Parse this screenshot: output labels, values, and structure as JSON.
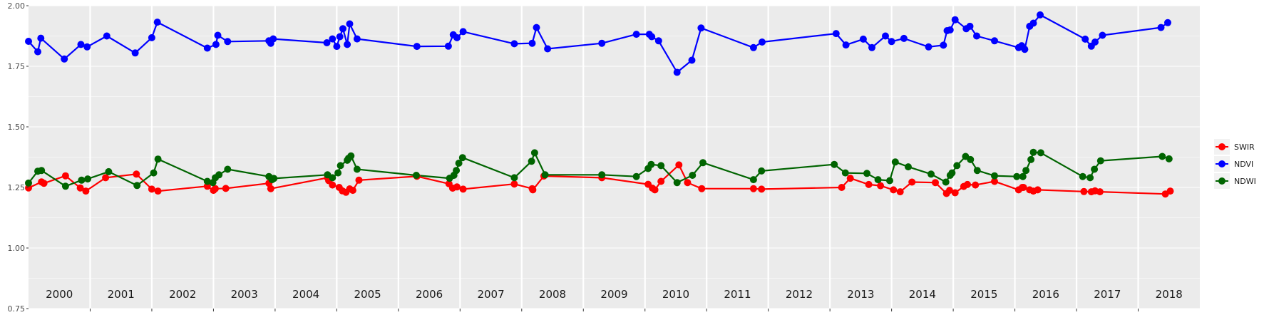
{
  "chart_data": {
    "type": "line",
    "title": "",
    "xlabel": "",
    "ylabel": "",
    "x_axis": {
      "range": [
        2000.0,
        2019.0
      ]
    },
    "ylim": [
      0.75,
      2.0
    ],
    "yticks": [
      0.75,
      1.0,
      1.25,
      1.5,
      1.75,
      2.0
    ],
    "ytick_labels": [
      "0.75",
      "1.00",
      "1.25",
      "1.50",
      "1.75",
      "2.00"
    ],
    "year_labels": [
      "2000",
      "2001",
      "2002",
      "2003",
      "2004",
      "2005",
      "2006",
      "2007",
      "2008",
      "2009",
      "2010",
      "2011",
      "2012",
      "2013",
      "2014",
      "2015",
      "2016",
      "2017",
      "2018"
    ],
    "grid": true,
    "legend_position": "right",
    "series": [
      {
        "name": "SWIR",
        "color": "#ff0000",
        "points": [
          [
            2000.0,
            1.248
          ],
          [
            2000.21,
            1.273
          ],
          [
            2000.25,
            1.267
          ],
          [
            2000.6,
            1.298
          ],
          [
            2000.84,
            1.248
          ],
          [
            2000.93,
            1.235
          ],
          [
            2001.25,
            1.29
          ],
          [
            2001.75,
            1.305
          ],
          [
            2002.0,
            1.243
          ],
          [
            2002.1,
            1.235
          ],
          [
            2002.9,
            1.255
          ],
          [
            2003.0,
            1.238
          ],
          [
            2003.03,
            1.245
          ],
          [
            2003.2,
            1.246
          ],
          [
            2003.9,
            1.267
          ],
          [
            2003.93,
            1.245
          ],
          [
            2004.85,
            1.29
          ],
          [
            2004.87,
            1.278
          ],
          [
            2004.93,
            1.26
          ],
          [
            2005.04,
            1.25
          ],
          [
            2005.09,
            1.236
          ],
          [
            2005.15,
            1.23
          ],
          [
            2005.21,
            1.244
          ],
          [
            2005.26,
            1.238
          ],
          [
            2005.36,
            1.28
          ],
          [
            2006.3,
            1.296
          ],
          [
            2006.82,
            1.265
          ],
          [
            2006.88,
            1.247
          ],
          [
            2006.95,
            1.252
          ],
          [
            2007.05,
            1.243
          ],
          [
            2007.88,
            1.264
          ],
          [
            2008.17,
            1.245
          ],
          [
            2008.18,
            1.24
          ],
          [
            2008.36,
            1.297
          ],
          [
            2009.3,
            1.29
          ],
          [
            2010.05,
            1.263
          ],
          [
            2010.12,
            1.247
          ],
          [
            2010.16,
            1.24
          ],
          [
            2010.26,
            1.275
          ],
          [
            2010.55,
            1.343
          ],
          [
            2010.69,
            1.27
          ],
          [
            2010.92,
            1.245
          ],
          [
            2011.76,
            1.245
          ],
          [
            2011.89,
            1.243
          ],
          [
            2013.19,
            1.25
          ],
          [
            2013.33,
            1.288
          ],
          [
            2013.63,
            1.262
          ],
          [
            2013.82,
            1.257
          ],
          [
            2014.03,
            1.24
          ],
          [
            2014.14,
            1.232
          ],
          [
            2014.33,
            1.272
          ],
          [
            2014.71,
            1.27
          ],
          [
            2014.89,
            1.225
          ],
          [
            2014.94,
            1.238
          ],
          [
            2015.03,
            1.228
          ],
          [
            2015.17,
            1.254
          ],
          [
            2015.23,
            1.262
          ],
          [
            2015.36,
            1.26
          ],
          [
            2015.67,
            1.275
          ],
          [
            2016.06,
            1.24
          ],
          [
            2016.12,
            1.25
          ],
          [
            2016.14,
            1.25
          ],
          [
            2016.24,
            1.24
          ],
          [
            2016.3,
            1.235
          ],
          [
            2016.37,
            1.24
          ],
          [
            2017.12,
            1.233
          ],
          [
            2017.24,
            1.232
          ],
          [
            2017.3,
            1.236
          ],
          [
            2017.38,
            1.232
          ],
          [
            2018.44,
            1.223
          ],
          [
            2018.52,
            1.235
          ]
        ]
      },
      {
        "name": "NDVI",
        "color": "#0000ff",
        "points": [
          [
            2000.0,
            1.853
          ],
          [
            2000.15,
            1.81
          ],
          [
            2000.2,
            1.866
          ],
          [
            2000.58,
            1.78
          ],
          [
            2000.85,
            1.84
          ],
          [
            2000.95,
            1.83
          ],
          [
            2001.27,
            1.875
          ],
          [
            2001.73,
            1.805
          ],
          [
            2002.0,
            1.868
          ],
          [
            2002.09,
            1.932
          ],
          [
            2002.9,
            1.825
          ],
          [
            2003.04,
            1.84
          ],
          [
            2003.07,
            1.878
          ],
          [
            2003.23,
            1.852
          ],
          [
            2003.9,
            1.855
          ],
          [
            2003.93,
            1.845
          ],
          [
            2003.97,
            1.863
          ],
          [
            2004.84,
            1.847
          ],
          [
            2004.93,
            1.863
          ],
          [
            2005.0,
            1.832
          ],
          [
            2005.05,
            1.872
          ],
          [
            2005.1,
            1.905
          ],
          [
            2005.17,
            1.84
          ],
          [
            2005.21,
            1.925
          ],
          [
            2005.33,
            1.863
          ],
          [
            2006.3,
            1.832
          ],
          [
            2006.81,
            1.833
          ],
          [
            2006.89,
            1.88
          ],
          [
            2006.95,
            1.868
          ],
          [
            2007.05,
            1.893
          ],
          [
            2007.88,
            1.843
          ],
          [
            2008.17,
            1.845
          ],
          [
            2008.24,
            1.91
          ],
          [
            2008.42,
            1.822
          ],
          [
            2009.3,
            1.845
          ],
          [
            2009.86,
            1.882
          ],
          [
            2010.07,
            1.882
          ],
          [
            2010.11,
            1.872
          ],
          [
            2010.22,
            1.855
          ],
          [
            2010.52,
            1.725
          ],
          [
            2010.76,
            1.775
          ],
          [
            2010.91,
            1.908
          ],
          [
            2011.76,
            1.827
          ],
          [
            2011.9,
            1.85
          ],
          [
            2013.1,
            1.885
          ],
          [
            2013.26,
            1.838
          ],
          [
            2013.54,
            1.862
          ],
          [
            2013.68,
            1.827
          ],
          [
            2013.9,
            1.875
          ],
          [
            2014.0,
            1.852
          ],
          [
            2014.2,
            1.865
          ],
          [
            2014.6,
            1.83
          ],
          [
            2014.84,
            1.837
          ],
          [
            2014.9,
            1.897
          ],
          [
            2014.95,
            1.9
          ],
          [
            2015.03,
            1.942
          ],
          [
            2015.21,
            1.905
          ],
          [
            2015.27,
            1.915
          ],
          [
            2015.38,
            1.875
          ],
          [
            2015.67,
            1.855
          ],
          [
            2016.06,
            1.827
          ],
          [
            2016.11,
            1.835
          ],
          [
            2016.16,
            1.82
          ],
          [
            2016.24,
            1.915
          ],
          [
            2016.3,
            1.928
          ],
          [
            2016.41,
            1.962
          ],
          [
            2017.14,
            1.862
          ],
          [
            2017.24,
            1.833
          ],
          [
            2017.3,
            1.85
          ],
          [
            2017.42,
            1.878
          ],
          [
            2018.37,
            1.91
          ],
          [
            2018.48,
            1.93
          ]
        ]
      },
      {
        "name": "NDWI",
        "color": "#006400",
        "points": [
          [
            2000.0,
            1.268
          ],
          [
            2000.15,
            1.317
          ],
          [
            2000.21,
            1.32
          ],
          [
            2000.6,
            1.255
          ],
          [
            2000.86,
            1.28
          ],
          [
            2000.96,
            1.285
          ],
          [
            2001.3,
            1.315
          ],
          [
            2001.76,
            1.258
          ],
          [
            2002.03,
            1.31
          ],
          [
            2002.1,
            1.367
          ],
          [
            2002.9,
            1.275
          ],
          [
            2002.99,
            1.27
          ],
          [
            2003.03,
            1.29
          ],
          [
            2003.09,
            1.302
          ],
          [
            2003.23,
            1.325
          ],
          [
            2003.9,
            1.295
          ],
          [
            2003.95,
            1.282
          ],
          [
            2003.98,
            1.287
          ],
          [
            2004.85,
            1.302
          ],
          [
            2004.93,
            1.29
          ],
          [
            2005.02,
            1.31
          ],
          [
            2005.06,
            1.34
          ],
          [
            2005.17,
            1.362
          ],
          [
            2005.19,
            1.37
          ],
          [
            2005.23,
            1.38
          ],
          [
            2005.33,
            1.325
          ],
          [
            2006.29,
            1.3
          ],
          [
            2006.83,
            1.288
          ],
          [
            2006.9,
            1.3
          ],
          [
            2006.94,
            1.32
          ],
          [
            2006.98,
            1.35
          ],
          [
            2007.04,
            1.373
          ],
          [
            2007.88,
            1.29
          ],
          [
            2008.16,
            1.358
          ],
          [
            2008.21,
            1.393
          ],
          [
            2008.38,
            1.302
          ],
          [
            2009.3,
            1.302
          ],
          [
            2009.86,
            1.295
          ],
          [
            2010.05,
            1.328
          ],
          [
            2010.1,
            1.345
          ],
          [
            2010.26,
            1.34
          ],
          [
            2010.52,
            1.27
          ],
          [
            2010.77,
            1.3
          ],
          [
            2010.94,
            1.352
          ],
          [
            2011.76,
            1.282
          ],
          [
            2011.89,
            1.318
          ],
          [
            2013.07,
            1.345
          ],
          [
            2013.25,
            1.31
          ],
          [
            2013.6,
            1.308
          ],
          [
            2013.78,
            1.282
          ],
          [
            2013.97,
            1.278
          ],
          [
            2014.06,
            1.355
          ],
          [
            2014.27,
            1.335
          ],
          [
            2014.64,
            1.305
          ],
          [
            2014.88,
            1.272
          ],
          [
            2014.95,
            1.3
          ],
          [
            2014.98,
            1.31
          ],
          [
            2015.06,
            1.34
          ],
          [
            2015.2,
            1.378
          ],
          [
            2015.28,
            1.365
          ],
          [
            2015.39,
            1.32
          ],
          [
            2015.67,
            1.298
          ],
          [
            2016.03,
            1.295
          ],
          [
            2016.13,
            1.295
          ],
          [
            2016.18,
            1.32
          ],
          [
            2016.26,
            1.365
          ],
          [
            2016.3,
            1.395
          ],
          [
            2016.42,
            1.393
          ],
          [
            2017.1,
            1.295
          ],
          [
            2017.22,
            1.29
          ],
          [
            2017.29,
            1.325
          ],
          [
            2017.39,
            1.36
          ],
          [
            2018.39,
            1.378
          ],
          [
            2018.5,
            1.368
          ]
        ]
      }
    ]
  }
}
